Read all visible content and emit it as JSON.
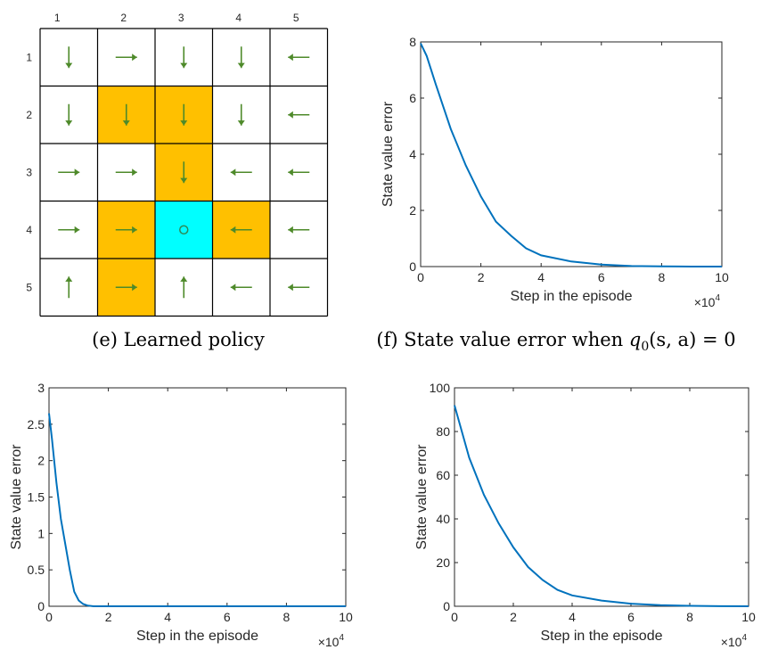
{
  "grid": {
    "col_labels": [
      "1",
      "2",
      "3",
      "4",
      "5"
    ],
    "row_labels": [
      "1",
      "2",
      "3",
      "4",
      "5"
    ],
    "colors": {
      "forbidden": "#FFC000",
      "target": "#00FFFF",
      "normal": "#FFFFFF",
      "arrow": "#4E8A2A",
      "target_marker": "#2E8B57"
    },
    "cells": [
      [
        "normal",
        "normal",
        "normal",
        "normal",
        "normal"
      ],
      [
        "normal",
        "forbidden",
        "forbidden",
        "normal",
        "normal"
      ],
      [
        "normal",
        "normal",
        "forbidden",
        "normal",
        "normal"
      ],
      [
        "normal",
        "forbidden",
        "target",
        "forbidden",
        "normal"
      ],
      [
        "normal",
        "forbidden",
        "normal",
        "normal",
        "normal"
      ]
    ],
    "actions": [
      [
        "down",
        "right",
        "down",
        "down",
        "left"
      ],
      [
        "down",
        "down",
        "down",
        "down",
        "left"
      ],
      [
        "right",
        "right",
        "down",
        "left",
        "left"
      ],
      [
        "right",
        "right",
        "stay",
        "left",
        "left"
      ],
      [
        "up",
        "right",
        "up",
        "left",
        "left"
      ]
    ],
    "caption": "(e) Learned policy"
  },
  "captions": {
    "f_prefix": "(f) State value error when ",
    "f_q": "q",
    "f_sub": "0",
    "f_args": "(s, a) = 0"
  },
  "chart_data": [
    {
      "id": "f",
      "type": "line",
      "xlabel": "Step in the episode",
      "ylabel": "State value error",
      "x_exponent": "×10",
      "x_exponent_power": "4",
      "xlim": [
        0,
        10
      ],
      "ylim": [
        0,
        8
      ],
      "xticks": [
        0,
        2,
        4,
        6,
        8,
        10
      ],
      "xtick_labels": [
        "0",
        "2",
        "4",
        "6",
        "8",
        "10"
      ],
      "yticks": [
        0,
        2,
        4,
        6,
        8
      ],
      "ytick_labels": [
        "0",
        "2",
        "4",
        "6",
        "8"
      ],
      "x": [
        0,
        0.2,
        0.5,
        1,
        1.5,
        2,
        2.5,
        3,
        3.5,
        4,
        5,
        6,
        7,
        8,
        9,
        10
      ],
      "y": [
        7.95,
        7.5,
        6.5,
        4.9,
        3.6,
        2.5,
        1.6,
        1.1,
        0.65,
        0.4,
        0.18,
        0.07,
        0.02,
        0.01,
        0.0,
        0.0
      ]
    },
    {
      "id": "g",
      "type": "line",
      "xlabel": "Step in the episode",
      "ylabel": "State value error",
      "x_exponent": "×10",
      "x_exponent_power": "4",
      "xlim": [
        0,
        10
      ],
      "ylim": [
        0,
        3
      ],
      "xticks": [
        0,
        2,
        4,
        6,
        8,
        10
      ],
      "xtick_labels": [
        "0",
        "2",
        "4",
        "6",
        "8",
        "10"
      ],
      "yticks": [
        0,
        0.5,
        1,
        1.5,
        2,
        2.5,
        3
      ],
      "ytick_labels": [
        "0",
        "0.5",
        "1",
        "1.5",
        "2",
        "2.5",
        "3"
      ],
      "x": [
        0,
        0.1,
        0.25,
        0.4,
        0.55,
        0.7,
        0.85,
        1.0,
        1.15,
        1.3,
        1.5,
        2,
        4,
        6,
        8,
        10
      ],
      "y": [
        2.65,
        2.3,
        1.7,
        1.2,
        0.85,
        0.5,
        0.2,
        0.08,
        0.03,
        0.01,
        0.0,
        0.0,
        0.0,
        0.0,
        0.0,
        0.0
      ]
    },
    {
      "id": "h",
      "type": "line",
      "xlabel": "Step in the episode",
      "ylabel": "State value error",
      "x_exponent": "×10",
      "x_exponent_power": "4",
      "xlim": [
        0,
        10
      ],
      "ylim": [
        0,
        100
      ],
      "xticks": [
        0,
        2,
        4,
        6,
        8,
        10
      ],
      "xtick_labels": [
        "0",
        "2",
        "4",
        "6",
        "8",
        "10"
      ],
      "yticks": [
        0,
        20,
        40,
        60,
        80,
        100
      ],
      "ytick_labels": [
        "0",
        "20",
        "40",
        "60",
        "80",
        "100"
      ],
      "x": [
        0,
        0.5,
        1,
        1.5,
        2,
        2.5,
        3,
        3.5,
        4,
        5,
        6,
        7,
        8,
        9,
        10
      ],
      "y": [
        92,
        68,
        51,
        38,
        27,
        18,
        12,
        7.5,
        5,
        2.6,
        1.2,
        0.5,
        0.2,
        0.05,
        0.0
      ]
    }
  ]
}
